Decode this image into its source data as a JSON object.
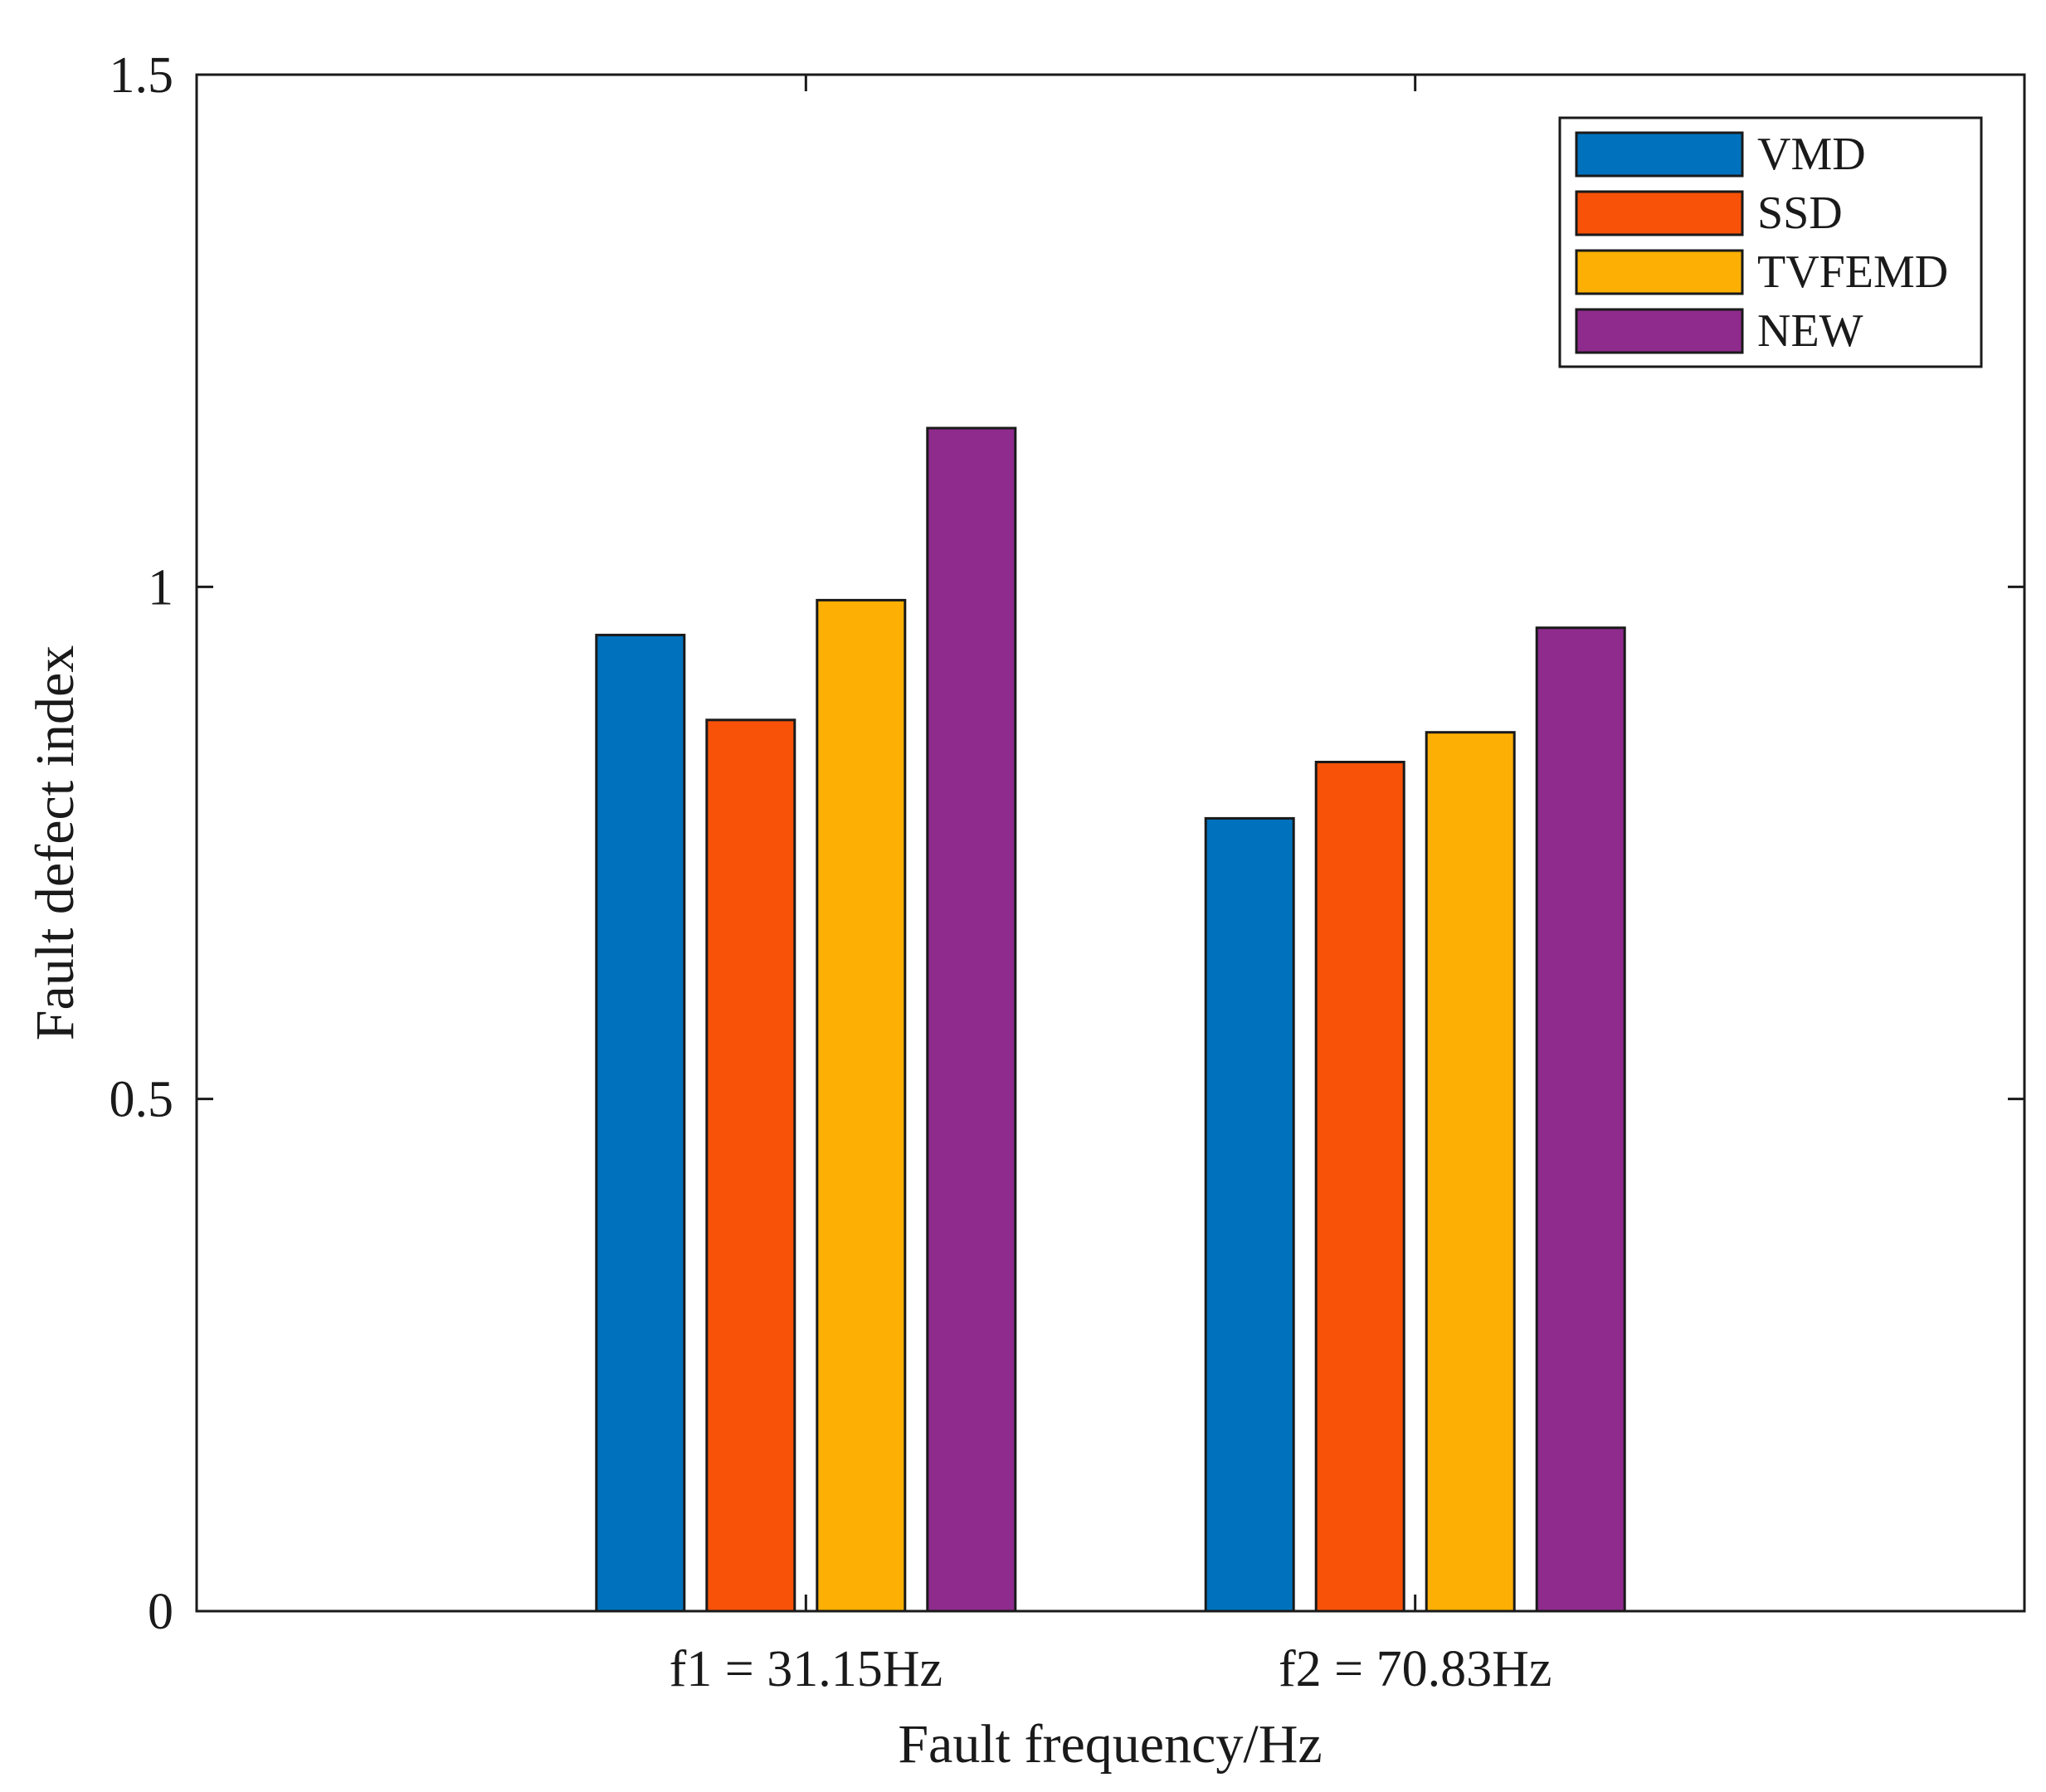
{
  "chart_data": {
    "type": "bar",
    "title": "",
    "xlabel": "Fault frequency/Hz",
    "ylabel": "Fault defect index",
    "categories": [
      "f1 = 31.15Hz",
      "f2 = 70.83Hz"
    ],
    "ylim": [
      0,
      1.5
    ],
    "yticks": [
      0,
      0.5,
      1,
      1.5
    ],
    "ytick_labels": [
      "0",
      "0.5",
      "1",
      "1.5"
    ],
    "grid": false,
    "legend_position": "top-right",
    "series": [
      {
        "name": "VMD",
        "color": "#0072BD",
        "values": [
          0.953,
          0.774
        ]
      },
      {
        "name": "SSD",
        "color": "#F75208",
        "values": [
          0.87,
          0.829
        ]
      },
      {
        "name": "TVFEMD",
        "color": "#FDB003",
        "values": [
          0.987,
          0.858
        ]
      },
      {
        "name": "NEW",
        "color": "#8E2B8D",
        "values": [
          1.155,
          0.96
        ]
      }
    ]
  }
}
